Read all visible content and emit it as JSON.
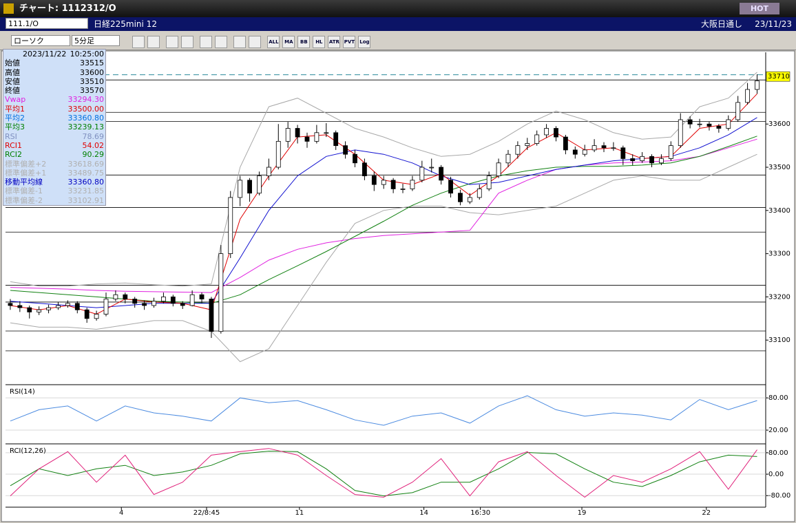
{
  "window": {
    "title": "チャート: 1112312/O",
    "hot": "HOT"
  },
  "symbol_bar": {
    "code": "111.1/O",
    "name": "日経225mini 12",
    "market": "大阪日通し",
    "date": "23/11/23"
  },
  "toolbar": {
    "chart_type": "ローソク",
    "interval": "5分足",
    "buttons": [
      "ALL",
      "MA",
      "BB",
      "HL",
      "ATR",
      "PVT",
      "Log"
    ]
  },
  "info_panel": {
    "date": "2023/11/22",
    "time": "10:25:00",
    "rows": [
      {
        "label": "始値",
        "value": "33515",
        "color": "#000000"
      },
      {
        "label": "高値",
        "value": "33600",
        "color": "#000000"
      },
      {
        "label": "安値",
        "value": "33510",
        "color": "#000000"
      },
      {
        "label": "終値",
        "value": "33570",
        "color": "#000000"
      },
      {
        "label": "Vwap",
        "value": "33294.30",
        "color": "#e020e0"
      },
      {
        "label": "平均1",
        "value": "33500.00",
        "color": "#e00000"
      },
      {
        "label": "平均2",
        "value": "33360.80",
        "color": "#0070e0"
      },
      {
        "label": "平均3",
        "value": "33239.13",
        "color": "#008000"
      },
      {
        "label": "RSI",
        "value": "78.69",
        "color": "#8090c0"
      },
      {
        "label": "RCI1",
        "value": "54.02",
        "color": "#e00000"
      },
      {
        "label": "RCI2",
        "value": "90.29",
        "color": "#008000"
      },
      {
        "label": "標準偏差+2",
        "value": "33618.69",
        "color": "#b0b0b0"
      },
      {
        "label": "標準偏差+1",
        "value": "33489.75",
        "color": "#b0b0b0"
      },
      {
        "label": "移動平均線",
        "value": "33360.80",
        "color": "#0000c0"
      },
      {
        "label": "標準偏差-1",
        "value": "33231.85",
        "color": "#b0b0b0"
      },
      {
        "label": "標準偏差-2",
        "value": "33102.91",
        "color": "#b0b0b0"
      }
    ]
  },
  "chart_data": [
    {
      "type": "candlestick",
      "xlim": [
        -0.5,
        78.9
      ],
      "ylim": [
        33000,
        33766
      ],
      "yticks": [
        33100,
        33200,
        33300,
        33400,
        33500,
        33600
      ],
      "xticks": [
        {
          "value": 11.6,
          "label": "4"
        },
        {
          "value": 20.5,
          "label": "22/8:45"
        },
        {
          "value": 30.2,
          "label": "11"
        },
        {
          "value": 43.2,
          "label": "14"
        },
        {
          "value": 49.1,
          "label": "16:30"
        },
        {
          "value": 59.7,
          "label": "19"
        },
        {
          "value": 72.7,
          "label": "22"
        }
      ],
      "hlines": [
        33702,
        33627,
        33606,
        33482,
        33407,
        33350,
        33227,
        33188,
        33121,
        33075
      ],
      "dashed_line": 33714,
      "last_price": 33710,
      "ohlc": [
        [
          33185,
          33195,
          33170,
          33180
        ],
        [
          33180,
          33190,
          33165,
          33175
        ],
        [
          33175,
          33180,
          33150,
          33165
        ],
        [
          33165,
          33178,
          33158,
          33170
        ],
        [
          33170,
          33182,
          33162,
          33175
        ],
        [
          33175,
          33188,
          33170,
          33180
        ],
        [
          33180,
          33192,
          33175,
          33185
        ],
        [
          33185,
          33190,
          33162,
          33170
        ],
        [
          33170,
          33175,
          33140,
          33150
        ],
        [
          33150,
          33168,
          33145,
          33160
        ],
        [
          33160,
          33210,
          33155,
          33195
        ],
        [
          33195,
          33215,
          33190,
          33205
        ],
        [
          33205,
          33210,
          33185,
          33195
        ],
        [
          33195,
          33200,
          33175,
          33185
        ],
        [
          33185,
          33192,
          33170,
          33180
        ],
        [
          33180,
          33198,
          33175,
          33190
        ],
        [
          33190,
          33210,
          33185,
          33200
        ],
        [
          33200,
          33205,
          33178,
          33185
        ],
        [
          33185,
          33190,
          33172,
          33180
        ],
        [
          33180,
          33215,
          33178,
          33205
        ],
        [
          33205,
          33210,
          33185,
          33195
        ],
        [
          33195,
          33200,
          33105,
          33120
        ],
        [
          33120,
          33320,
          33115,
          33300
        ],
        [
          33300,
          33445,
          33290,
          33430
        ],
        [
          33430,
          33480,
          33410,
          33470
        ],
        [
          33470,
          33475,
          33420,
          33440
        ],
        [
          33440,
          33490,
          33435,
          33480
        ],
        [
          33480,
          33520,
          33470,
          33500
        ],
        [
          33500,
          33600,
          33495,
          33560
        ],
        [
          33560,
          33605,
          33545,
          33590
        ],
        [
          33590,
          33598,
          33555,
          33570
        ],
        [
          33570,
          33580,
          33545,
          33560
        ],
        [
          33560,
          33598,
          33555,
          33580
        ],
        [
          33580,
          33602,
          33570,
          33580
        ],
        [
          33580,
          33585,
          33540,
          33550
        ],
        [
          33550,
          33560,
          33520,
          33530
        ],
        [
          33530,
          33540,
          33500,
          33510
        ],
        [
          33510,
          33520,
          33470,
          33480
        ],
        [
          33480,
          33490,
          33445,
          33460
        ],
        [
          33460,
          33480,
          33450,
          33470
        ],
        [
          33470,
          33475,
          33440,
          33450
        ],
        [
          33450,
          33462,
          33440,
          33450
        ],
        [
          33450,
          33480,
          33445,
          33470
        ],
        [
          33470,
          33515,
          33465,
          33500
        ],
        [
          33500,
          33520,
          33488,
          33500
        ],
        [
          33500,
          33505,
          33460,
          33470
        ],
        [
          33470,
          33478,
          33430,
          33440
        ],
        [
          33440,
          33448,
          33412,
          33420
        ],
        [
          33420,
          33440,
          33415,
          33430
        ],
        [
          33430,
          33460,
          33425,
          33450
        ],
        [
          33450,
          33490,
          33445,
          33480
        ],
        [
          33480,
          33520,
          33475,
          33510
        ],
        [
          33510,
          33540,
          33500,
          33530
        ],
        [
          33530,
          33560,
          33520,
          33550
        ],
        [
          33550,
          33568,
          33540,
          33555
        ],
        [
          33555,
          33585,
          33550,
          33575
        ],
        [
          33575,
          33600,
          33568,
          33590
        ],
        [
          33590,
          33595,
          33560,
          33570
        ],
        [
          33570,
          33575,
          33530,
          33540
        ],
        [
          33540,
          33548,
          33520,
          33530
        ],
        [
          33530,
          33552,
          33525,
          33540
        ],
        [
          33540,
          33565,
          33535,
          33550
        ],
        [
          33550,
          33558,
          33535,
          33545
        ],
        [
          33545,
          33558,
          33538,
          33545
        ],
        [
          33545,
          33550,
          33505,
          33520
        ],
        [
          33520,
          33530,
          33505,
          33515
        ],
        [
          33515,
          33535,
          33510,
          33525
        ],
        [
          33525,
          33530,
          33500,
          33510
        ],
        [
          33510,
          33530,
          33505,
          33520
        ],
        [
          33520,
          33560,
          33515,
          33550
        ],
        [
          33550,
          33625,
          33545,
          33610
        ],
        [
          33610,
          33618,
          33590,
          33600
        ],
        [
          33600,
          33612,
          33592,
          33600
        ],
        [
          33600,
          33605,
          33585,
          33595
        ],
        [
          33595,
          33600,
          33580,
          33590
        ],
        [
          33590,
          33620,
          33585,
          33610
        ],
        [
          33610,
          33665,
          33605,
          33650
        ],
        [
          33650,
          33695,
          33645,
          33680
        ],
        [
          33680,
          33715,
          33670,
          33700
        ]
      ],
      "line_x": [
        0,
        3,
        6,
        9,
        12,
        15,
        18,
        21,
        24,
        27,
        30,
        33,
        36,
        39,
        42,
        45,
        48,
        51,
        54,
        57,
        60,
        63,
        66,
        69,
        72,
        75,
        78
      ],
      "overlays": [
        {
          "color": "#a8a8a8",
          "values": [
            33235,
            33225,
            33225,
            33230,
            33232,
            33228,
            33225,
            33230,
            33500,
            33640,
            33660,
            33625,
            33590,
            33570,
            33545,
            33525,
            33530,
            33560,
            33600,
            33630,
            33610,
            33580,
            33565,
            33570,
            33640,
            33660,
            33720
          ]
        },
        {
          "color": "#a8a8a8",
          "values": [
            33140,
            33130,
            33130,
            33125,
            33135,
            33145,
            33145,
            33120,
            33050,
            33080,
            33180,
            33280,
            33370,
            33400,
            33410,
            33410,
            33395,
            33390,
            33400,
            33410,
            33440,
            33470,
            33480,
            33470,
            33470,
            33500,
            33530
          ]
        },
        {
          "color": "#e020e0",
          "values": [
            33222,
            33220,
            33218,
            33215,
            33213,
            33212,
            33211,
            33210,
            33245,
            33285,
            33310,
            33325,
            33335,
            33342,
            33346,
            33350,
            33354,
            33440,
            33470,
            33495,
            33505,
            33510,
            33512,
            33515,
            33525,
            33545,
            33565
          ]
        },
        {
          "color": "#108010",
          "values": [
            33215,
            33210,
            33205,
            33200,
            33195,
            33190,
            33188,
            33185,
            33205,
            33240,
            33272,
            33305,
            33340,
            33375,
            33412,
            33440,
            33462,
            33480,
            33492,
            33500,
            33502,
            33502,
            33505,
            33510,
            33525,
            33548,
            33572
          ]
        },
        {
          "color": "#1010d0",
          "values": [
            33190,
            33185,
            33180,
            33175,
            33180,
            33185,
            33185,
            33185,
            33290,
            33400,
            33480,
            33525,
            33540,
            33530,
            33510,
            33480,
            33460,
            33465,
            33480,
            33495,
            33505,
            33515,
            33520,
            33525,
            33545,
            33575,
            33615
          ]
        },
        {
          "color": "#e00000",
          "values": [
            33180,
            33170,
            33180,
            33160,
            33195,
            33188,
            33185,
            33170,
            33380,
            33480,
            33570,
            33575,
            33530,
            33470,
            33460,
            33485,
            33435,
            33480,
            33545,
            33580,
            33540,
            33545,
            33520,
            33525,
            33590,
            33600,
            33670
          ]
        }
      ]
    },
    {
      "type": "line",
      "title": "RSI(14)",
      "xlim": [
        -0.5,
        78.9
      ],
      "ylim": [
        -3,
        102
      ],
      "yticks": [
        {
          "value": 80,
          "label": "80.00"
        },
        {
          "value": 20,
          "label": "20.00"
        }
      ],
      "x": [
        0,
        3,
        6,
        9,
        12,
        15,
        18,
        21,
        24,
        27,
        30,
        33,
        36,
        39,
        42,
        45,
        48,
        51,
        54,
        57,
        60,
        63,
        66,
        69,
        72,
        75,
        78
      ],
      "series": [
        {
          "color": "#4a8ae0",
          "values": [
            37,
            58,
            65,
            37,
            65,
            52,
            46,
            37,
            80,
            71,
            75,
            58,
            39,
            29,
            46,
            52,
            33,
            65,
            84,
            58,
            46,
            52,
            48,
            39,
            77,
            58,
            75
          ]
        }
      ]
    },
    {
      "type": "line",
      "title": "RCI(12,26)",
      "xlim": [
        -0.5,
        78.9
      ],
      "ylim": [
        -118,
        108
      ],
      "yticks": [
        {
          "value": 80,
          "label": "80.00"
        },
        {
          "value": 0,
          "label": "0.00"
        },
        {
          "value": -80,
          "label": "-80.00"
        }
      ],
      "x": [
        0,
        3,
        6,
        9,
        12,
        15,
        18,
        21,
        24,
        27,
        30,
        33,
        36,
        39,
        42,
        45,
        48,
        51,
        54,
        57,
        60,
        63,
        66,
        69,
        72,
        75,
        78
      ],
      "series": [
        {
          "color": "#108010",
          "values": [
            -43,
            20,
            -5,
            20,
            33,
            -5,
            8,
            33,
            76,
            86,
            84,
            20,
            -61,
            -81,
            -69,
            -30,
            -30,
            20,
            81,
            76,
            20,
            -30,
            -46,
            -5,
            46,
            71,
            66
          ]
        },
        {
          "color": "#e0207a",
          "values": [
            -81,
            20,
            84,
            -30,
            71,
            -76,
            -30,
            71,
            84,
            96,
            71,
            -5,
            -76,
            -86,
            -30,
            58,
            -81,
            46,
            84,
            -5,
            -86,
            -5,
            -30,
            20,
            84,
            -56,
            91
          ]
        }
      ]
    }
  ]
}
